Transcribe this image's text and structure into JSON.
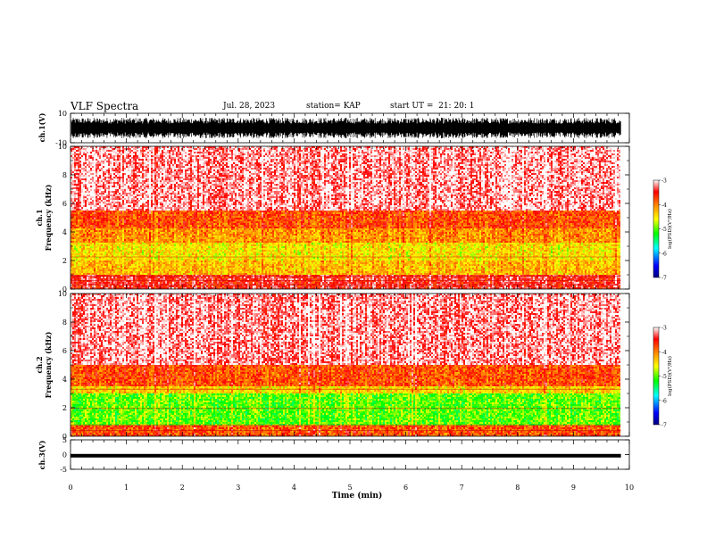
{
  "header": {
    "title": "VLF Spectra",
    "date": "Jul. 28, 2023",
    "station": "station= KAP",
    "start": "start UT =  21: 20: 1"
  },
  "chart_data": [
    {
      "type": "line",
      "panel": "ch1-waveform",
      "ylabel": "ch.1(V)",
      "ylim": [
        -10,
        10
      ],
      "y_ticks": [
        "10",
        "-10"
      ],
      "series": [
        {
          "description_values": "dense oscillating trace spanning roughly -7 to 7 V",
          "color": "#000000"
        }
      ]
    },
    {
      "type": "heatmap",
      "panel": "ch1-spectrogram",
      "ylabel": "ch.1 Frequency (kHz)",
      "ylim": [
        0,
        10
      ],
      "xlim": [
        0,
        10
      ],
      "y_ticks": [
        "0",
        "2",
        "4",
        "6",
        "8",
        "10"
      ],
      "bands": [
        {
          "from_khz": 0.0,
          "to_khz": 1.0,
          "level": -3.5
        },
        {
          "from_khz": 1.0,
          "to_khz": 2.0,
          "level": -4.3
        },
        {
          "from_khz": 2.0,
          "to_khz": 3.2,
          "level": -4.5
        },
        {
          "from_khz": 3.2,
          "to_khz": 4.2,
          "level": -4.1
        },
        {
          "from_khz": 4.2,
          "to_khz": 5.5,
          "level": -3.8
        },
        {
          "from_khz": 5.5,
          "to_khz": 10.0,
          "level": -3.2
        }
      ],
      "colorbar": {
        "label": "log(PSD)(V²/Hz)",
        "ticks": [
          "-3",
          "-4",
          "-5",
          "-6",
          "-7"
        ],
        "range": [
          -7,
          -3
        ]
      }
    },
    {
      "type": "heatmap",
      "panel": "ch2-spectrogram",
      "ylabel": "ch.2 Frequency (kHz)",
      "ylim": [
        0,
        10
      ],
      "xlim": [
        0,
        10
      ],
      "y_ticks": [
        "0",
        "2",
        "4",
        "6",
        "8",
        "10"
      ],
      "bands": [
        {
          "from_khz": 0.0,
          "to_khz": 0.8,
          "level": -3.8
        },
        {
          "from_khz": 0.8,
          "to_khz": 3.0,
          "level": -5.0
        },
        {
          "from_khz": 3.0,
          "to_khz": 3.5,
          "level": -4.4
        },
        {
          "from_khz": 3.5,
          "to_khz": 5.0,
          "level": -3.8
        },
        {
          "from_khz": 5.0,
          "to_khz": 10.0,
          "level": -3.2
        }
      ],
      "colorbar": {
        "label": "log(PSD)(V²/Hz)",
        "ticks": [
          "-3",
          "-4",
          "-5",
          "-6",
          "-7"
        ],
        "range": [
          -7,
          -3
        ]
      }
    },
    {
      "type": "line",
      "panel": "ch3-waveform",
      "ylabel": "ch.3(V)",
      "ylim": [
        -5,
        5
      ],
      "y_ticks": [
        "5",
        "0",
        "-5"
      ],
      "series": [
        {
          "value": -0.4,
          "spread": 0.6,
          "color": "#000000"
        }
      ]
    }
  ],
  "x_axis": {
    "label": "Time (min)",
    "ticks": [
      "0",
      "1",
      "2",
      "3",
      "4",
      "5",
      "6",
      "7",
      "8",
      "9",
      "10"
    ],
    "xlim": [
      0,
      10
    ],
    "data_end_min": 9.85
  },
  "colors": {
    "colorscale": [
      "#000080",
      "#0000ff",
      "#00ffff",
      "#00ff00",
      "#ffff00",
      "#ff8000",
      "#ff0000",
      "#ffffff"
    ]
  }
}
